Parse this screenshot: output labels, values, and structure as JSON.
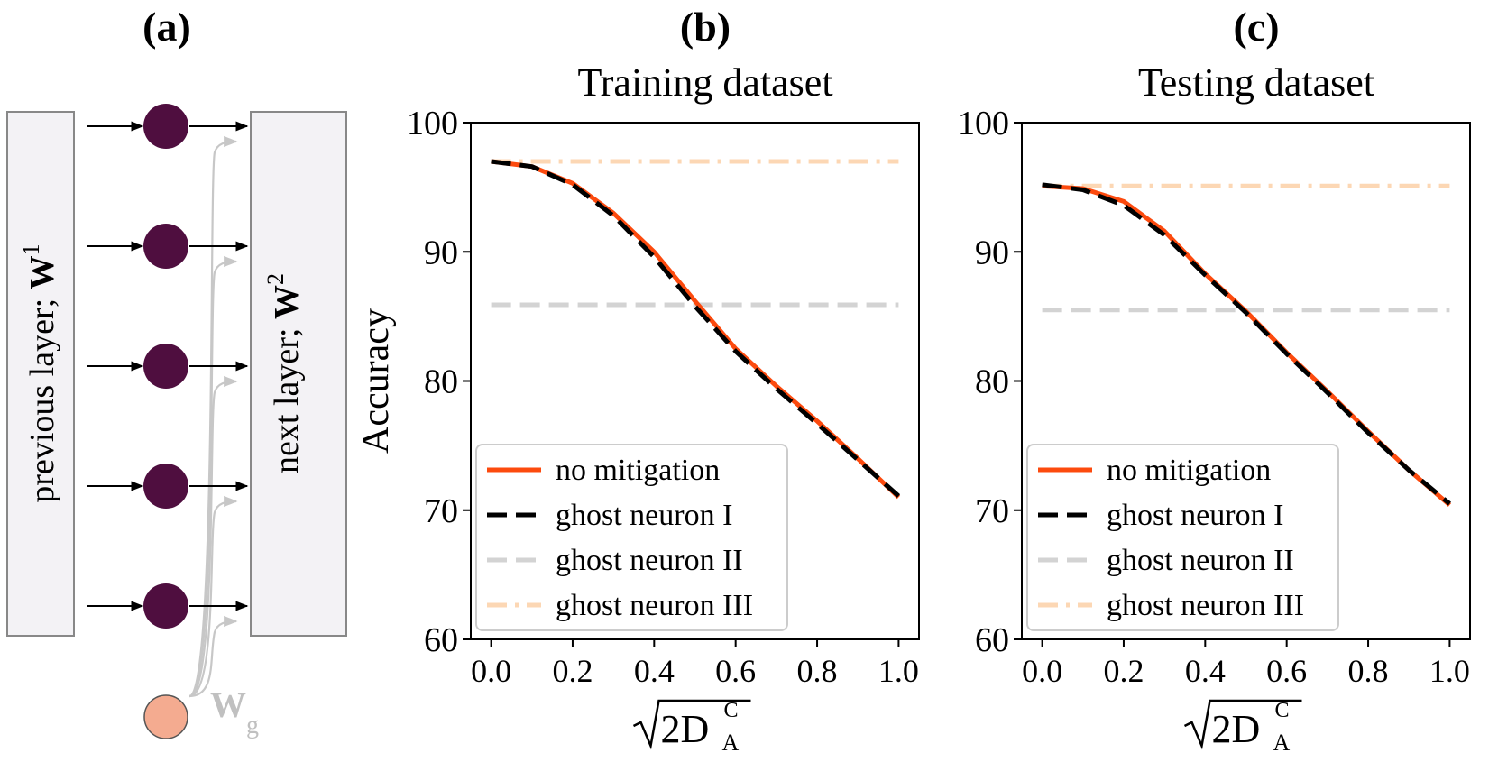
{
  "panel_a": {
    "label": "(a)",
    "prev_layer_text": "previous layer; ",
    "prev_layer_weight": "W",
    "prev_layer_weight_sup": "1",
    "next_layer_text": "next layer; ",
    "next_layer_weight": "W",
    "next_layer_weight_sup": "2",
    "ghost_weight": "W",
    "ghost_weight_sub": "g",
    "neuron_count": 5,
    "colors": {
      "box_fill": "#f3f2f5",
      "box_stroke": "#888888",
      "neuron": "#4f0e3f",
      "ghost": "#f4ab90",
      "ghost_arrow": "#c7c7c7"
    }
  },
  "chart_data": [
    {
      "type": "line",
      "panel_label": "(b)",
      "title": "Training dataset",
      "xlabel_sqrt": "2D",
      "xlabel_sub": "A",
      "xlabel_sup": "C",
      "ylabel": "Accuracy",
      "xlim": [
        -0.05,
        1.05
      ],
      "ylim": [
        60,
        100
      ],
      "xticks": [
        0.0,
        0.2,
        0.4,
        0.6,
        0.8,
        1.0
      ],
      "xtick_labels": [
        "0.0",
        "0.2",
        "0.4",
        "0.6",
        "0.8",
        "1.0"
      ],
      "yticks": [
        60,
        70,
        80,
        90,
        100
      ],
      "ytick_labels": [
        "60",
        "70",
        "80",
        "90",
        "100"
      ],
      "legend_position": "lower-left",
      "series": [
        {
          "name": "no mitigation",
          "color": "#fc4a0e",
          "style": "solid",
          "x": [
            0,
            0.1,
            0.2,
            0.3,
            0.4,
            0.5,
            0.6,
            0.7,
            0.8,
            0.9,
            1.0
          ],
          "y": [
            97.0,
            96.6,
            95.3,
            93.0,
            90.0,
            86.2,
            82.5,
            79.6,
            76.9,
            74.0,
            71.0
          ]
        },
        {
          "name": "ghost neuron I",
          "color": "#000000",
          "style": "dashed",
          "x": [
            0,
            0.1,
            0.2,
            0.3,
            0.4,
            0.5,
            0.6,
            0.7,
            0.8,
            0.9,
            1.0
          ],
          "y": [
            97.0,
            96.6,
            95.2,
            92.8,
            89.6,
            85.8,
            82.3,
            79.4,
            76.7,
            73.9,
            71.1
          ]
        },
        {
          "name": "ghost neuron II",
          "color": "#d3d3d3",
          "style": "dashed",
          "x": [
            0,
            1.0
          ],
          "y": [
            85.9,
            85.9
          ]
        },
        {
          "name": "ghost neuron III",
          "color": "#fcd7b4",
          "style": "dashdot",
          "x": [
            0,
            1.0
          ],
          "y": [
            97.0,
            97.0
          ]
        }
      ]
    },
    {
      "type": "line",
      "panel_label": "(c)",
      "title": "Testing dataset",
      "xlabel_sqrt": "2D",
      "xlabel_sub": "A",
      "xlabel_sup": "C",
      "ylabel": "",
      "xlim": [
        -0.05,
        1.05
      ],
      "ylim": [
        60,
        100
      ],
      "xticks": [
        0.0,
        0.2,
        0.4,
        0.6,
        0.8,
        1.0
      ],
      "xtick_labels": [
        "0.0",
        "0.2",
        "0.4",
        "0.6",
        "0.8",
        "1.0"
      ],
      "yticks": [
        60,
        70,
        80,
        90,
        100
      ],
      "ytick_labels": [
        "60",
        "70",
        "80",
        "90",
        "100"
      ],
      "legend_position": "lower-left",
      "series": [
        {
          "name": "no mitigation",
          "color": "#fc4a0e",
          "style": "solid",
          "x": [
            0,
            0.1,
            0.2,
            0.3,
            0.4,
            0.5,
            0.6,
            0.7,
            0.8,
            0.9,
            1.0
          ],
          "y": [
            95.1,
            94.9,
            93.9,
            91.6,
            88.3,
            85.4,
            82.2,
            79.2,
            76.1,
            73.1,
            70.4
          ]
        },
        {
          "name": "ghost neuron I",
          "color": "#000000",
          "style": "dashed",
          "x": [
            0,
            0.1,
            0.2,
            0.3,
            0.4,
            0.5,
            0.6,
            0.7,
            0.8,
            0.9,
            1.0
          ],
          "y": [
            95.2,
            94.8,
            93.6,
            91.3,
            88.2,
            85.3,
            82.1,
            79.1,
            76.0,
            73.1,
            70.5
          ]
        },
        {
          "name": "ghost neuron II",
          "color": "#d3d3d3",
          "style": "dashed",
          "x": [
            0,
            1.0
          ],
          "y": [
            85.5,
            85.5
          ]
        },
        {
          "name": "ghost neuron III",
          "color": "#fcd7b4",
          "style": "dashdot",
          "x": [
            0,
            1.0
          ],
          "y": [
            95.1,
            95.1
          ]
        }
      ]
    }
  ]
}
